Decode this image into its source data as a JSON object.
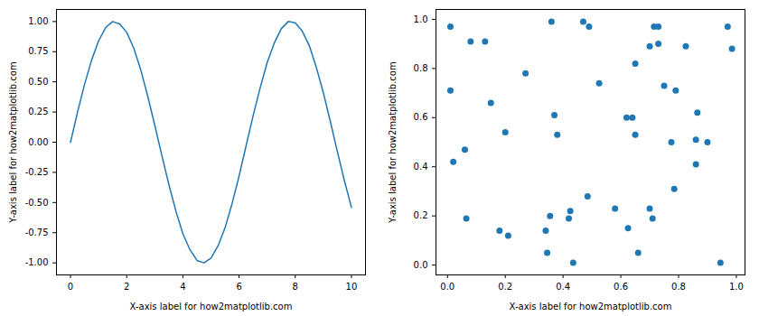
{
  "chart_data": [
    {
      "type": "line",
      "color": "#1f77b4",
      "xlabel": "X-axis label for how2matplotlib.com",
      "ylabel": "Y-axis label for how2matplotlib.com",
      "x": [
        0,
        0.25,
        0.5,
        0.75,
        1,
        1.25,
        1.5,
        1.75,
        2,
        2.25,
        2.5,
        2.75,
        3,
        3.25,
        3.5,
        3.75,
        4,
        4.25,
        4.5,
        4.75,
        5,
        5.25,
        5.5,
        5.75,
        6,
        6.25,
        6.5,
        6.75,
        7,
        7.25,
        7.5,
        7.75,
        8,
        8.25,
        8.5,
        8.75,
        9,
        9.25,
        9.5,
        9.75,
        10
      ],
      "values": [
        0,
        0.25,
        0.48,
        0.68,
        0.84,
        0.95,
        1.0,
        0.98,
        0.91,
        0.78,
        0.6,
        0.38,
        0.14,
        -0.11,
        -0.35,
        -0.57,
        -0.76,
        -0.89,
        -0.98,
        -1.0,
        -0.96,
        -0.86,
        -0.71,
        -0.51,
        -0.28,
        -0.03,
        0.22,
        0.45,
        0.66,
        0.82,
        0.94,
        1.0,
        0.99,
        0.92,
        0.8,
        0.62,
        0.41,
        0.17,
        -0.08,
        -0.32,
        -0.54
      ],
      "xlim": [
        -0.5,
        10.5
      ],
      "xticks": [
        0,
        2,
        4,
        6,
        8,
        10
      ],
      "ylim": [
        -1.1,
        1.1
      ],
      "yticks": [
        {
          "value": -1,
          "label": "-1.00"
        },
        {
          "value": -0.75,
          "label": "-0.75"
        },
        {
          "value": -0.5,
          "label": "-0.50"
        },
        {
          "value": -0.25,
          "label": "-0.25"
        },
        {
          "value": 0,
          "label": "0.00"
        },
        {
          "value": 0.25,
          "label": "0.25"
        },
        {
          "value": 0.5,
          "label": "0.50"
        },
        {
          "value": 0.75,
          "label": "0.75"
        },
        {
          "value": 1,
          "label": "1.00"
        }
      ]
    },
    {
      "type": "scatter",
      "color": "#1f77b4",
      "xlabel": "X-axis label for how2matplotlib.com",
      "ylabel": "Y-axis label for how2matplotlib.com",
      "x": [
        0.01,
        0.01,
        0.02,
        0.06,
        0.065,
        0.08,
        0.13,
        0.15,
        0.18,
        0.2,
        0.21,
        0.27,
        0.34,
        0.345,
        0.355,
        0.36,
        0.37,
        0.38,
        0.42,
        0.425,
        0.435,
        0.47,
        0.485,
        0.49,
        0.525,
        0.58,
        0.62,
        0.625,
        0.64,
        0.65,
        0.65,
        0.66,
        0.7,
        0.7,
        0.71,
        0.715,
        0.73,
        0.73,
        0.75,
        0.775,
        0.785,
        0.79,
        0.825,
        0.86,
        0.86,
        0.865,
        0.9,
        0.945,
        0.97,
        0.985
      ],
      "values": [
        0.97,
        0.71,
        0.42,
        0.47,
        0.19,
        0.91,
        0.91,
        0.66,
        0.14,
        0.54,
        0.12,
        0.78,
        0.14,
        0.05,
        0.2,
        0.99,
        0.61,
        0.53,
        0.19,
        0.22,
        0.01,
        0.99,
        0.28,
        0.97,
        0.74,
        0.23,
        0.6,
        0.15,
        0.6,
        0.53,
        0.82,
        0.05,
        0.89,
        0.23,
        0.19,
        0.97,
        0.9,
        0.97,
        0.73,
        0.5,
        0.31,
        0.71,
        0.89,
        0.51,
        0.41,
        0.62,
        0.5,
        0.01,
        0.97,
        0.88
      ],
      "xlim": [
        -0.04,
        1.03
      ],
      "xticks": [
        {
          "value": 0,
          "label": "0.0"
        },
        0.2,
        0.4,
        0.6,
        0.8,
        {
          "value": 1,
          "label": "1.0"
        }
      ],
      "ylim": [
        -0.04,
        1.04
      ],
      "yticks": [
        {
          "value": 0,
          "label": "0.0"
        },
        0.2,
        0.4,
        0.6,
        0.8,
        {
          "value": 1,
          "label": "1.0"
        }
      ]
    }
  ]
}
